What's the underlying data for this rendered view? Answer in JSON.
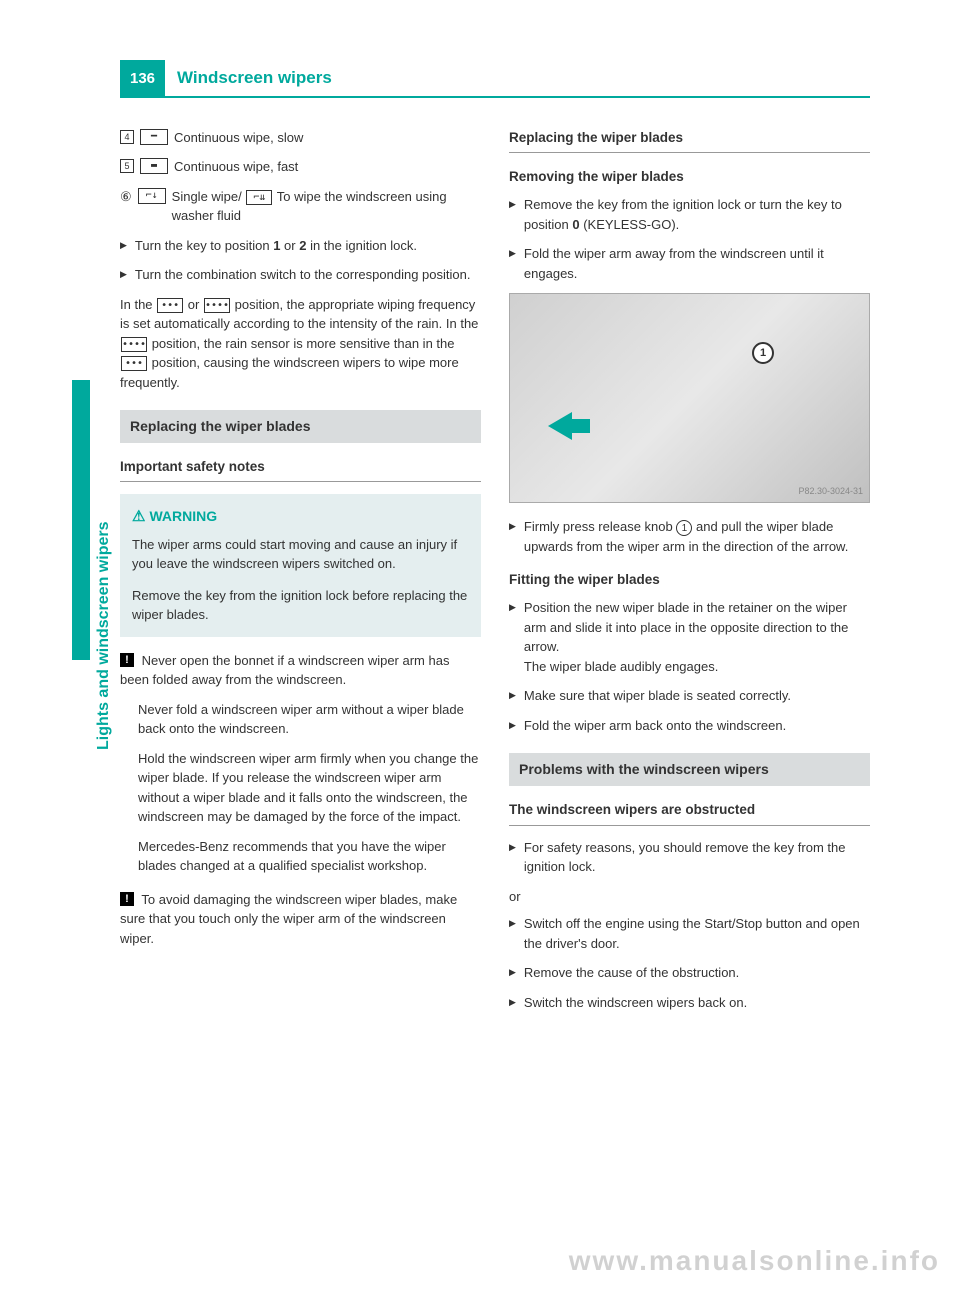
{
  "page_number": "136",
  "section_title": "Windscreen wipers",
  "side_label": "Lights and windscreen wipers",
  "left": {
    "items": [
      {
        "num": "4",
        "sym": "━",
        "text": "Continuous wipe, slow"
      },
      {
        "num": "5",
        "sym": "▬",
        "text": "Continuous wipe, fast"
      }
    ],
    "item6_num": "⑥",
    "item6_sym1": "⌐↓",
    "item6_mid": "Single wipe/",
    "item6_sym2": "⌐⇊",
    "item6_end": "To wipe the windscreen using washer fluid",
    "step1": "Turn the key to position ",
    "step1_b1": "1",
    "step1_mid": " or ",
    "step1_b2": "2",
    "step1_end": " in the ignition lock.",
    "step2": "Turn the combination switch to the corresponding position.",
    "para1a": "In the ",
    "sym_low": "•••",
    "para1b": " or ",
    "sym_high": "••••",
    "para1c": " position, the appropriate wiping frequency is set automatically according to the intensity of the rain. In the ",
    "para1d": " position, the rain sensor is more sensitive than in the ",
    "para1e": " position, causing the windscreen wipers to wipe more frequently.",
    "heading_replace": "Replacing the wiper blades",
    "sub_important": "Important safety notes",
    "warning_label": "WARNING",
    "warning_p1": "The wiper arms could start moving and cause an injury if you leave the windscreen wipers switched on.",
    "warning_p2": "Remove the key from the ignition lock before replacing the wiper blades.",
    "notice1_p1": "Never open the bonnet if a windscreen wiper arm has been folded away from the windscreen.",
    "notice1_p2": "Never fold a windscreen wiper arm without a wiper blade back onto the windscreen.",
    "notice1_p3": "Hold the windscreen wiper arm firmly when you change the wiper blade. If you release the windscreen wiper arm without a wiper blade and it falls onto the windscreen, the windscreen may be damaged by the force of the impact.",
    "notice1_p4": "Mercedes-Benz recommends that you have the wiper blades changed at a qualified specialist workshop.",
    "notice2_p1": "To avoid damaging the windscreen wiper blades, make sure that you touch only the wiper arm of the windscreen wiper."
  },
  "right": {
    "heading_replace": "Replacing the wiper blades",
    "sub_removing": "Removing the wiper blades",
    "remove_step1a": "Remove the key from the ignition lock or turn the key to position ",
    "remove_step1_b": "0",
    "remove_step1c": " (KEYLESS-GO).",
    "remove_step2": "Fold the wiper arm away from the windscreen until it engages.",
    "fig_ref": "P82.30-3024-31",
    "fig_callout": "1",
    "remove_step3a": "Firmly press release knob ",
    "remove_step3b": " and pull the wiper blade upwards from the wiper arm in the direction of the arrow.",
    "sub_fitting": "Fitting the wiper blades",
    "fit_step1": "Position the new wiper blade in the retainer on the wiper arm and slide it into place in the opposite direction to the arrow.",
    "fit_step1_cont": "The wiper blade audibly engages.",
    "fit_step2": "Make sure that wiper blade is seated correctly.",
    "fit_step3": "Fold the wiper arm back onto the windscreen.",
    "heading_problems": "Problems with the windscreen wipers",
    "sub_obstructed": "The windscreen wipers are obstructed",
    "obs_step1": "For safety reasons, you should remove the key from the ignition lock.",
    "or": "or",
    "obs_step2": "Switch off the engine using the Start/Stop button and open the driver's door.",
    "obs_step3": "Remove the cause of the obstruction.",
    "obs_step4": "Switch the windscreen wipers back on."
  },
  "watermark": "www.manualsonline.info"
}
